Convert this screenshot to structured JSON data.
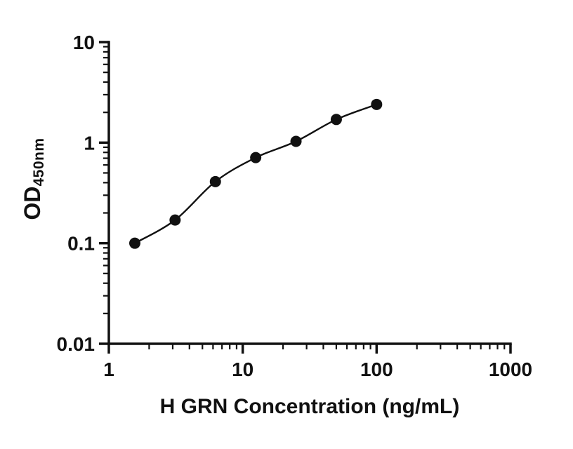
{
  "chart_data": {
    "type": "scatter",
    "title": "",
    "xlabel": "H GRN Concentration (ng/mL)",
    "ylabel_main": "OD",
    "ylabel_sub": "450nm",
    "x_scale": "log",
    "y_scale": "log",
    "xlim": [
      1,
      1000
    ],
    "ylim": [
      0.01,
      10
    ],
    "x": [
      1.563,
      3.125,
      6.25,
      12.5,
      25,
      50,
      100
    ],
    "y": [
      0.1,
      0.17,
      0.41,
      0.71,
      1.03,
      1.7,
      2.4
    ],
    "x_major_ticks": [
      1,
      10,
      100,
      1000
    ],
    "x_tick_labels": [
      "1",
      "10",
      "100",
      "1000"
    ],
    "y_major_ticks": [
      0.01,
      0.1,
      1,
      10
    ],
    "y_tick_labels": [
      "0.01",
      "0.1",
      "1",
      "10"
    ],
    "grid": false,
    "legend": "none",
    "marker_color": "#111111",
    "line_color": "#111111",
    "axis_color": "#111111"
  }
}
